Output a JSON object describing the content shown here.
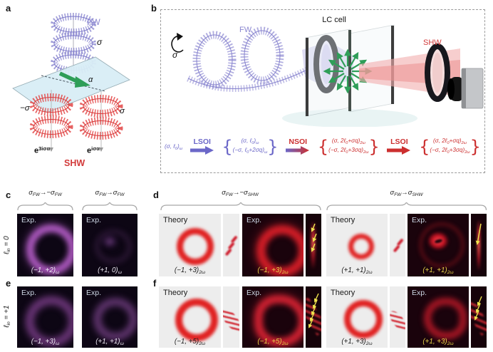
{
  "colors": {
    "fw_purple": "#8a86d0",
    "shw_red": "#d23a3a",
    "lc_green": "#3aa85f",
    "eq_blue": "#6b67c8",
    "eq_red": "#cc2f2f",
    "exp_caption_yellow": "#e8d44a",
    "theory_bg": "#ededed",
    "exp_bg_dark": "#1a030c"
  },
  "panel_a": {
    "label": "a",
    "fw": "FW",
    "sigma_top": "σ",
    "alpha": "α",
    "sigma_left": "−σ",
    "sigma_right": "σ",
    "shw": "SHW",
    "exp_left": [
      {
        "t": "e"
      },
      {
        "sup": "3iσα"
      }
    ],
    "exp_right": [
      {
        "t": "e"
      },
      {
        "sup": "iσα"
      }
    ]
  },
  "panel_b": {
    "label": "b",
    "lc_cell": "LC cell",
    "fw": "FW",
    "shw": "SHW",
    "sigma": "σ",
    "equation": {
      "input": [
        {
          "t": "(σ, ℓ"
        },
        {
          "sub": "0"
        },
        {
          "t": ")"
        },
        {
          "sub": "ω"
        }
      ],
      "lsoi1": "LSOI",
      "nsoi": "NSOI",
      "lsoi2": "LSOI",
      "group1_line1": [
        {
          "t": "(σ, ℓ"
        },
        {
          "sub": "0"
        },
        {
          "t": ")"
        },
        {
          "sub": "ω"
        }
      ],
      "group1_line2": [
        {
          "t": "(−σ, ℓ"
        },
        {
          "sub": "0"
        },
        {
          "t": "+2σq)"
        },
        {
          "sub": "ω"
        }
      ],
      "group2_line1": [
        {
          "t": "(σ, 2ℓ"
        },
        {
          "sub": "0"
        },
        {
          "t": "+σq)"
        },
        {
          "sub": "2ω"
        }
      ],
      "group2_line2": [
        {
          "t": "(−σ, 2ℓ"
        },
        {
          "sub": "0"
        },
        {
          "t": "+3σq)"
        },
        {
          "sub": "2ω"
        }
      ],
      "group3_line1": [
        {
          "t": "(σ, 2ℓ"
        },
        {
          "sub": "0"
        },
        {
          "t": "+σq)"
        },
        {
          "sub": "2ω"
        }
      ],
      "group3_line2": [
        {
          "t": "(−σ, 2ℓ"
        },
        {
          "sub": "0"
        },
        {
          "t": "+3σq)"
        },
        {
          "sub": "2ω"
        }
      ]
    }
  },
  "panel_c": {
    "label": "c",
    "row_label": [
      {
        "t": "ℓ"
      },
      {
        "sub": "in"
      },
      {
        "t": " = 0"
      }
    ],
    "header1": [
      {
        "t": "σ"
      },
      {
        "sub": "FW"
      },
      {
        "t": "→−σ"
      },
      {
        "sub": "FW"
      }
    ],
    "header2": [
      {
        "t": "σ"
      },
      {
        "sub": "FW"
      },
      {
        "t": "→σ"
      },
      {
        "sub": "FW"
      }
    ],
    "tile1_tag": "Exp.",
    "tile1_caption": [
      {
        "t": "(−1, +2)"
      },
      {
        "sub": "ω"
      }
    ],
    "tile2_tag": "Exp.",
    "tile2_caption": [
      {
        "t": "(+1, 0)"
      },
      {
        "sub": "ω"
      }
    ]
  },
  "panel_d": {
    "label": "d",
    "header1": [
      {
        "t": "σ"
      },
      {
        "sub": "FW"
      },
      {
        "t": "→−σ"
      },
      {
        "sub": "SHW"
      }
    ],
    "header2": [
      {
        "t": "σ"
      },
      {
        "sub": "FW"
      },
      {
        "t": "→σ"
      },
      {
        "sub": "SHW"
      }
    ],
    "g1_theory_tag": "Theory",
    "g1_theory_caption": [
      {
        "t": "(−1, +3)"
      },
      {
        "sub": "2ω"
      }
    ],
    "g1_exp_tag": "Exp.",
    "g1_exp_caption": [
      {
        "t": "(−1, +3)"
      },
      {
        "sub": "2ω"
      }
    ],
    "g2_theory_tag": "Theory",
    "g2_theory_caption": [
      {
        "t": "(+1, +1)"
      },
      {
        "sub": "2ω"
      }
    ],
    "g2_exp_tag": "Exp.",
    "g2_exp_caption": [
      {
        "t": "(+1, +1)"
      },
      {
        "sub": "2ω"
      }
    ]
  },
  "panel_e": {
    "label": "e",
    "row_label": [
      {
        "t": "ℓ"
      },
      {
        "sub": "in"
      },
      {
        "t": " = +1"
      }
    ],
    "tile1_tag": "Exp.",
    "tile1_caption": [
      {
        "t": "(−1, +3)"
      },
      {
        "sub": "ω"
      }
    ],
    "tile2_tag": "Exp.",
    "tile2_caption": [
      {
        "t": "(+1, +1)"
      },
      {
        "sub": "ω"
      }
    ]
  },
  "panel_f": {
    "label": "f",
    "g1_theory_tag": "Theory",
    "g1_theory_caption": [
      {
        "t": "(−1, +5)"
      },
      {
        "sub": "2ω"
      }
    ],
    "g1_exp_tag": "Exp.",
    "g1_exp_caption": [
      {
        "t": "(−1, +5)"
      },
      {
        "sub": "2ω"
      }
    ],
    "g2_theory_tag": "Theory",
    "g2_theory_caption": [
      {
        "t": "(+1, +3)"
      },
      {
        "sub": "2ω"
      }
    ],
    "g2_exp_tag": "Exp.",
    "g2_exp_caption": [
      {
        "t": "(+1, +3)"
      },
      {
        "sub": "2ω"
      }
    ]
  }
}
